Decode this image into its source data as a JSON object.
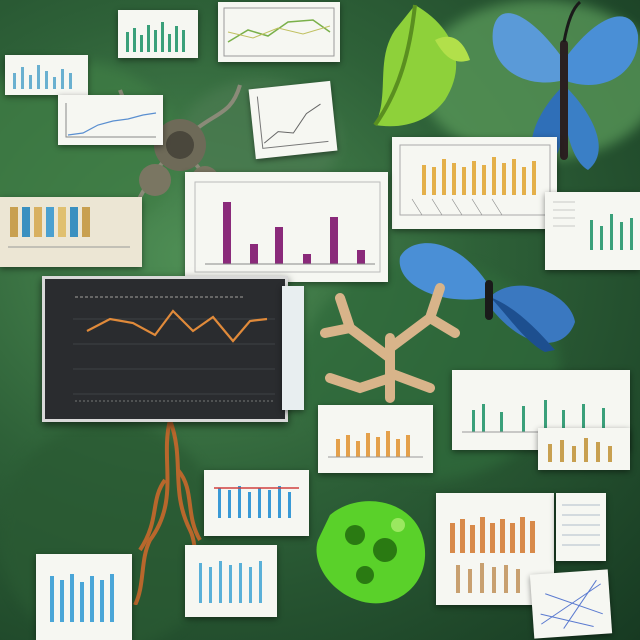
{
  "scene": {
    "description_kind": "collage",
    "colors": {
      "jungle_dark": "#173a22",
      "jungle_mid": "#2e6138",
      "jungle_light": "#4f8f55",
      "butterfly_blue": "#4a8fd6",
      "leaf_lime": "#8ed13a",
      "coral_tan": "#d8b48a",
      "root_orange": "#b8672c",
      "chart_line_orange": "#e08a3a",
      "bar_purple": "#8a2a7a",
      "bar_teal": "#3aa0a0",
      "bar_gold": "#e4b04a"
    },
    "icons": [
      "butterfly-icon",
      "leaf-icon",
      "coral-icon",
      "roots-icon"
    ]
  }
}
